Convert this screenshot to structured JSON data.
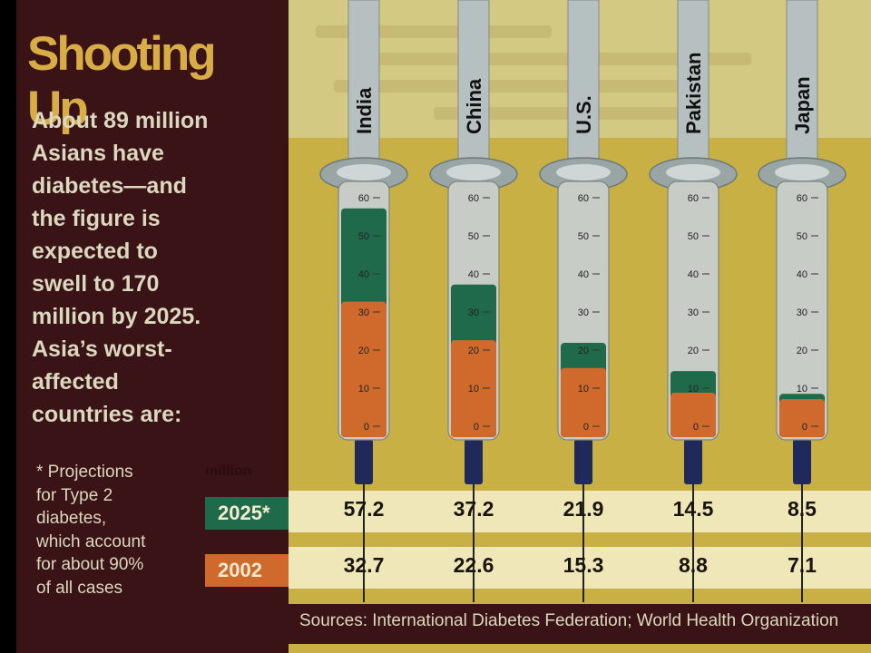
{
  "intro_lines": [
    "About 89 million",
    "Asians have",
    "diabetes—and",
    "the figure is",
    "expected to",
    "swell to 170",
    "million by 2025.",
    "Asia’s worst-",
    "affected",
    "countries are:"
  ],
  "footnote_lines": [
    "* Projections",
    "for Type 2",
    "diabetes,",
    "which account",
    "for about 90%",
    "of all cases"
  ],
  "colors": {
    "series_2025": "#1f6a4a",
    "series_2002": "#cf6a2c",
    "background": "#3a1316",
    "title": "#d9ad46"
  },
  "chart_data": {
    "type": "bar",
    "title": "Shooting Up",
    "unit": "million",
    "categories": [
      "India",
      "China",
      "U.S.",
      "Pakistan",
      "Japan"
    ],
    "series": [
      {
        "name": "2025*",
        "values": [
          57.2,
          37.2,
          21.9,
          14.5,
          8.5
        ]
      },
      {
        "name": "2002",
        "values": [
          32.7,
          22.6,
          15.3,
          8.8,
          7.1
        ]
      }
    ],
    "ylim": [
      0,
      60
    ],
    "ticks": [
      0,
      10,
      20,
      30,
      40,
      50,
      60
    ],
    "sources": "Sources: International Diabetes Federation; World Health Organization"
  }
}
